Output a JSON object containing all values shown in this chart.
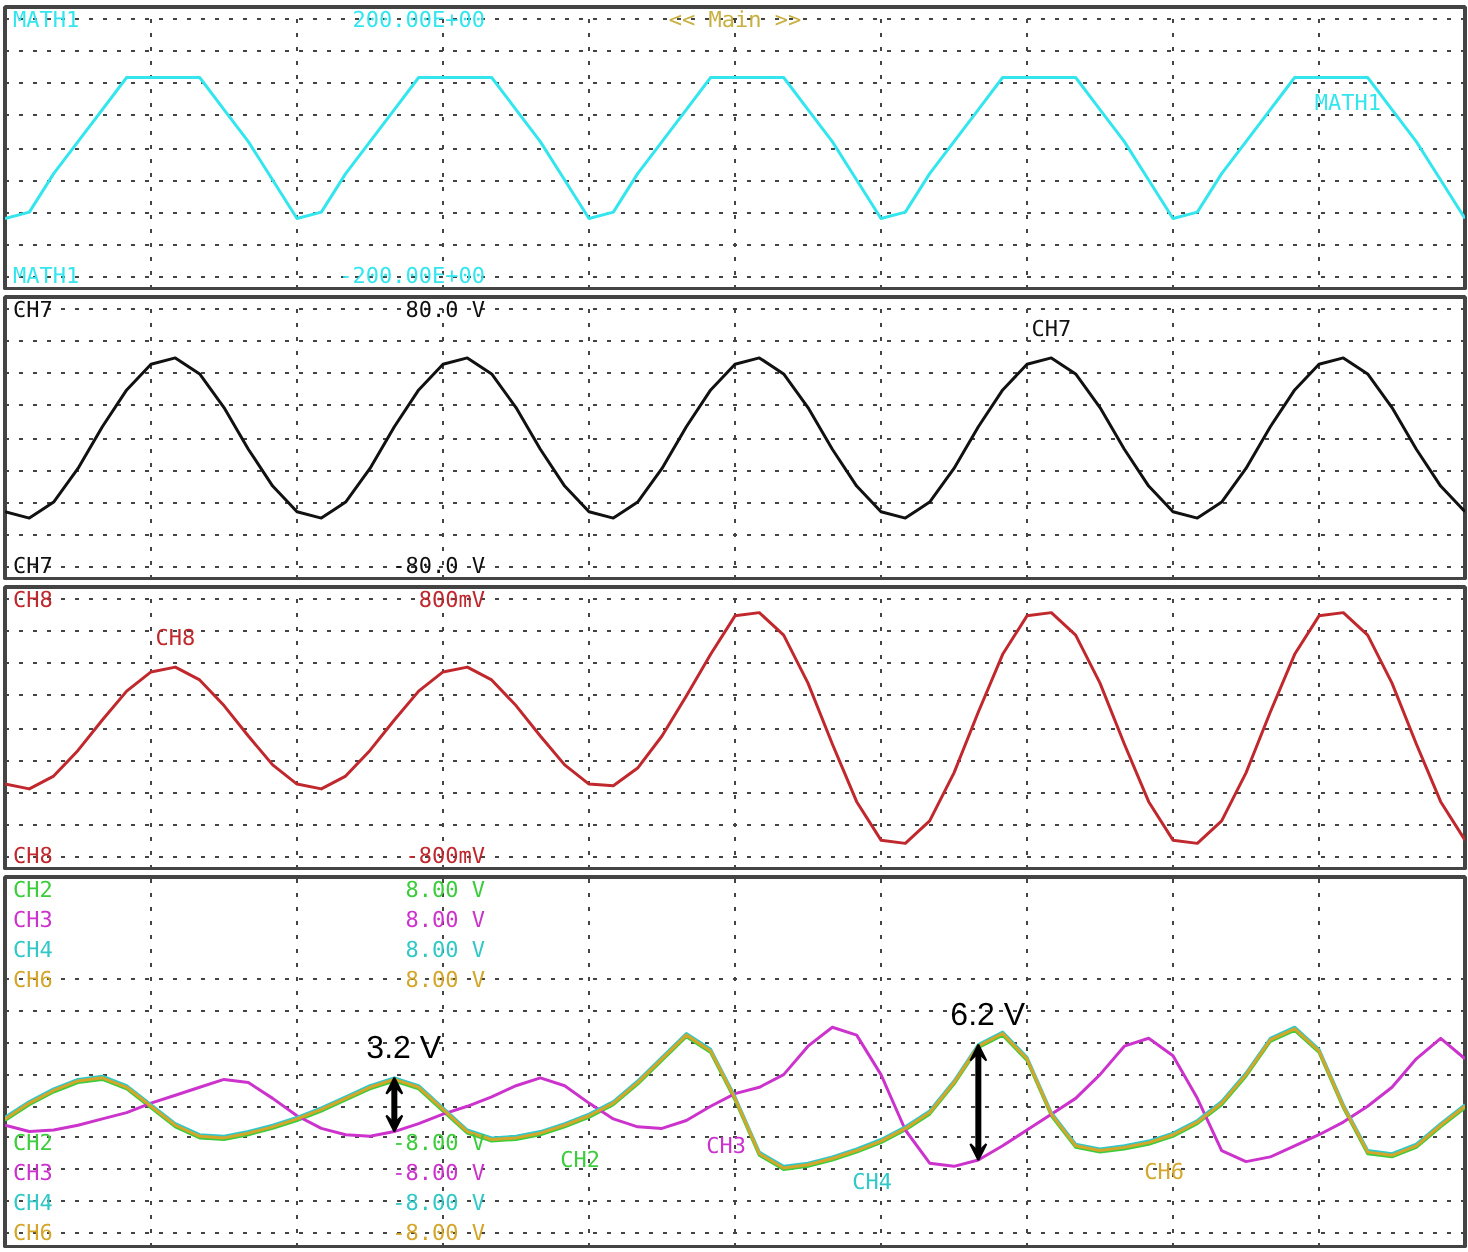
{
  "chart_data": [
    {
      "type": "line",
      "title": "<< Main >>",
      "categories": [
        null,
        null,
        null,
        null,
        null,
        null,
        null,
        null,
        null,
        null,
        null,
        null,
        null,
        null,
        null,
        null,
        null,
        null,
        null,
        null,
        null,
        null,
        null,
        null,
        null,
        null,
        null,
        null,
        null,
        null,
        null,
        null,
        null,
        null,
        null,
        null,
        null,
        null,
        null,
        null,
        null,
        null,
        null,
        null,
        null,
        null,
        null,
        null,
        null,
        null,
        null,
        null,
        null,
        null,
        null,
        null,
        null,
        null,
        null,
        null,
        null
      ],
      "series": [
        {
          "name": "MATH1",
          "color": "#33e6ee",
          "values": [
            -110,
            -100,
            -40,
            10,
            60,
            110,
            110,
            110,
            110,
            60,
            10,
            -50,
            -110,
            -100,
            -40,
            10,
            60,
            110,
            110,
            110,
            110,
            60,
            10,
            -50,
            -110,
            -100,
            -40,
            10,
            60,
            110,
            110,
            110,
            110,
            60,
            10,
            -50,
            -110,
            -100,
            -40,
            10,
            60,
            110,
            110,
            110,
            110,
            60,
            10,
            -50,
            -110,
            -100,
            -40,
            10,
            60,
            110,
            110,
            110,
            110,
            60,
            10,
            -50,
            -110
          ]
        }
      ],
      "ylim": [
        -220,
        220
      ],
      "yticks": [
        {
          "value": -200,
          "label": "-200.00E+00"
        },
        {
          "value": -150,
          "label": null
        },
        {
          "value": -100,
          "label": null
        },
        {
          "value": -50,
          "label": null
        },
        {
          "value": 0,
          "label": null
        },
        {
          "value": 50,
          "label": null
        },
        {
          "value": 100,
          "label": null
        },
        {
          "value": 150,
          "label": null
        },
        {
          "value": 200,
          "label": "200.00E+00"
        }
      ],
      "grid": true,
      "tick_labels": "y"
    },
    {
      "type": "line",
      "categories": [
        null,
        null,
        null,
        null,
        null,
        null,
        null,
        null,
        null,
        null,
        null,
        null,
        null,
        null,
        null,
        null,
        null,
        null,
        null,
        null,
        null,
        null,
        null,
        null,
        null,
        null,
        null,
        null,
        null,
        null,
        null,
        null,
        null,
        null,
        null,
        null,
        null,
        null,
        null,
        null,
        null,
        null,
        null,
        null,
        null,
        null,
        null,
        null,
        null,
        null,
        null,
        null,
        null,
        null,
        null,
        null,
        null,
        null,
        null,
        null,
        null
      ],
      "series": [
        {
          "name": "CH7",
          "color": "#111111",
          "values": [
            -46,
            -50,
            -40,
            -19,
            7,
            30,
            46,
            50,
            40,
            19,
            -7,
            -30,
            -46,
            -50,
            -40,
            -19,
            7,
            30,
            46,
            50,
            40,
            19,
            -7,
            -30,
            -46,
            -50,
            -40,
            -19,
            7,
            30,
            46,
            50,
            40,
            19,
            -7,
            -30,
            -46,
            -50,
            -40,
            -19,
            7,
            30,
            46,
            50,
            40,
            19,
            -7,
            -30,
            -46,
            -50,
            -40,
            -19,
            7,
            30,
            46,
            50,
            40,
            19,
            -7,
            -30,
            -46
          ]
        }
      ],
      "ylim": [
        -88,
        88
      ],
      "yticks": [
        {
          "value": -80,
          "label": "-80.0 V"
        },
        {
          "value": -60,
          "label": null
        },
        {
          "value": -40,
          "label": null
        },
        {
          "value": -20,
          "label": null
        },
        {
          "value": 0,
          "label": null
        },
        {
          "value": 20,
          "label": null
        },
        {
          "value": 40,
          "label": null
        },
        {
          "value": 60,
          "label": null
        },
        {
          "value": 80,
          "label": "80.0 V"
        }
      ],
      "grid": true,
      "tick_labels": "y"
    },
    {
      "type": "line",
      "categories": [
        null,
        null,
        null,
        null,
        null,
        null,
        null,
        null,
        null,
        null,
        null,
        null,
        null,
        null,
        null,
        null,
        null,
        null,
        null,
        null,
        null,
        null,
        null,
        null,
        null,
        null,
        null,
        null,
        null,
        null,
        null,
        null,
        null,
        null,
        null,
        null,
        null,
        null,
        null,
        null,
        null,
        null,
        null,
        null,
        null,
        null,
        null,
        null,
        null,
        null,
        null,
        null,
        null,
        null,
        null,
        null,
        null,
        null,
        null,
        null,
        null
      ],
      "series": [
        {
          "name": "CH8",
          "color": "#c0282d",
          "values": [
            -350,
            -380,
            -300,
            -140,
            50,
            230,
            350,
            380,
            300,
            140,
            -50,
            -230,
            -350,
            -380,
            -300,
            -140,
            50,
            230,
            350,
            380,
            300,
            140,
            -50,
            -230,
            -350,
            -360,
            -250,
            -50,
            200,
            460,
            700,
            720,
            580,
            280,
            -100,
            -460,
            -700,
            -720,
            -580,
            -280,
            100,
            460,
            700,
            720,
            580,
            280,
            -100,
            -460,
            -700,
            -720,
            -580,
            -280,
            100,
            460,
            700,
            720,
            580,
            280,
            -100,
            -460,
            -700
          ]
        }
      ],
      "ylim": [
        -880,
        880
      ],
      "yticks": [
        {
          "value": -800,
          "label": "-800mV"
        },
        {
          "value": -600,
          "label": null
        },
        {
          "value": -400,
          "label": null
        },
        {
          "value": -200,
          "label": null
        },
        {
          "value": 0,
          "label": null
        },
        {
          "value": 200,
          "label": null
        },
        {
          "value": 400,
          "label": null
        },
        {
          "value": 600,
          "label": null
        },
        {
          "value": 800,
          "label": "800mV"
        }
      ],
      "grid": true,
      "tick_labels": "y"
    },
    {
      "type": "line",
      "categories": [
        null,
        null,
        null,
        null,
        null,
        null,
        null,
        null,
        null,
        null,
        null,
        null,
        null,
        null,
        null,
        null,
        null,
        null,
        null,
        null,
        null,
        null,
        null,
        null,
        null,
        null,
        null,
        null,
        null,
        null,
        null,
        null,
        null,
        null,
        null,
        null,
        null,
        null,
        null,
        null,
        null,
        null,
        null,
        null,
        null,
        null,
        null,
        null,
        null,
        null,
        null,
        null,
        null,
        null,
        null,
        null,
        null,
        null,
        null,
        null,
        null
      ],
      "series": [
        {
          "name": "CH2",
          "color": "#3ccc3c",
          "values": [
            -0.9,
            0.1,
            0.9,
            1.5,
            1.7,
            1.1,
            -0.1,
            -1.3,
            -2.0,
            -2.1,
            -1.8,
            -1.4,
            -0.9,
            -0.3,
            0.4,
            1.1,
            1.6,
            1.1,
            -0.3,
            -1.7,
            -2.2,
            -2.1,
            -1.8,
            -1.3,
            -0.7,
            0.1,
            1.4,
            2.9,
            4.4,
            3.4,
            0.4,
            -3.1,
            -4.0,
            -3.8,
            -3.4,
            -2.9,
            -2.3,
            -1.5,
            -0.5,
            1.4,
            3.7,
            4.5,
            2.9,
            -0.6,
            -2.6,
            -2.9,
            -2.7,
            -2.4,
            -1.9,
            -1.1,
            0.1,
            1.9,
            4.1,
            4.8,
            3.4,
            -0.1,
            -3.0,
            -3.2,
            -2.6,
            -1.3,
            -0.1
          ]
        },
        {
          "name": "CH3",
          "color": "#cc33cc",
          "values": [
            -1.2,
            -1.6,
            -1.5,
            -1.2,
            -0.8,
            -0.4,
            0.2,
            0.7,
            1.2,
            1.7,
            1.5,
            0.5,
            -0.6,
            -1.4,
            -1.8,
            -1.9,
            -1.6,
            -1.1,
            -0.5,
            0.0,
            0.6,
            1.3,
            1.8,
            1.3,
            0.2,
            -0.8,
            -1.3,
            -1.4,
            -0.9,
            0.0,
            0.8,
            1.2,
            2.0,
            3.8,
            5.0,
            4.5,
            2.0,
            -1.5,
            -3.6,
            -3.8,
            -3.4,
            -2.5,
            -1.5,
            -0.5,
            0.5,
            2.0,
            3.8,
            4.3,
            3.2,
            0.5,
            -2.8,
            -3.5,
            -3.2,
            -2.5,
            -1.8,
            -1.0,
            0.0,
            1.2,
            3.0,
            4.3,
            3.0
          ]
        },
        {
          "name": "CH4",
          "color": "#33c8c8",
          "values": [
            -0.7,
            0.3,
            1.1,
            1.7,
            1.9,
            1.3,
            0.1,
            -1.1,
            -1.8,
            -1.9,
            -1.6,
            -1.2,
            -0.7,
            -0.1,
            0.6,
            1.3,
            1.8,
            1.3,
            -0.1,
            -1.5,
            -2.0,
            -1.9,
            -1.6,
            -1.1,
            -0.5,
            0.3,
            1.6,
            3.1,
            4.6,
            3.6,
            0.6,
            -2.9,
            -3.8,
            -3.6,
            -3.2,
            -2.7,
            -2.1,
            -1.3,
            -0.3,
            1.6,
            3.9,
            4.7,
            3.1,
            -0.4,
            -2.4,
            -2.7,
            -2.5,
            -2.2,
            -1.7,
            -0.9,
            0.3,
            2.1,
            4.3,
            5.0,
            3.6,
            0.1,
            -2.8,
            -3.0,
            -2.4,
            -1.1,
            0.1
          ]
        },
        {
          "name": "CH6",
          "color": "#d4a62a",
          "values": [
            -0.8,
            0.2,
            1.0,
            1.6,
            1.8,
            1.2,
            0.0,
            -1.2,
            -1.9,
            -2.0,
            -1.7,
            -1.3,
            -0.8,
            -0.2,
            0.5,
            1.2,
            1.7,
            1.2,
            -0.2,
            -1.6,
            -2.1,
            -2.0,
            -1.7,
            -1.2,
            -0.6,
            0.2,
            1.5,
            3.0,
            4.5,
            3.5,
            0.5,
            -3.0,
            -3.9,
            -3.7,
            -3.3,
            -2.8,
            -2.2,
            -1.4,
            -0.4,
            1.5,
            3.8,
            4.6,
            3.0,
            -0.5,
            -2.5,
            -2.8,
            -2.6,
            -2.3,
            -1.8,
            -1.0,
            0.2,
            2.0,
            4.2,
            4.9,
            3.5,
            0.0,
            -2.9,
            -3.1,
            -2.5,
            -1.2,
            0.0
          ]
        }
      ],
      "ylim": [
        -8.9,
        14.5
      ],
      "yticks": [
        {
          "value": -8,
          "label": "-8.00 V"
        },
        {
          "value": -6,
          "label": null
        },
        {
          "value": -4,
          "label": null
        },
        {
          "value": -2,
          "label": null
        },
        {
          "value": 0,
          "label": null
        },
        {
          "value": 2,
          "label": null
        },
        {
          "value": 4,
          "label": null
        },
        {
          "value": 6,
          "label": null
        },
        {
          "value": 8,
          "label": "8.00 V"
        }
      ],
      "grid": true,
      "tick_labels": "y",
      "annotations": [
        "3.2 V",
        "6.2 V"
      ]
    }
  ]
}
